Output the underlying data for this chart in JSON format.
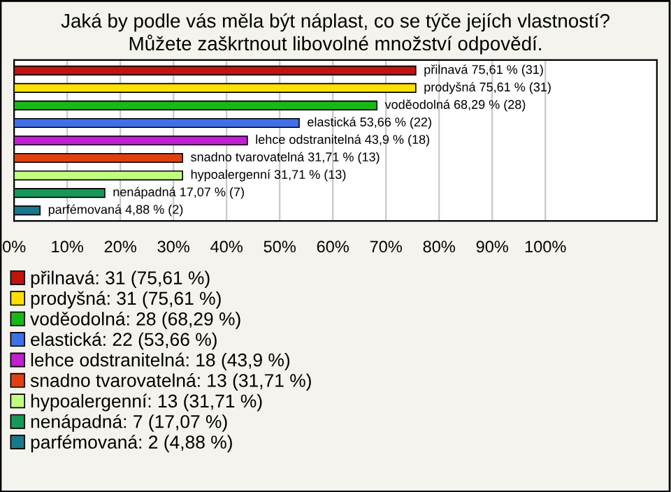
{
  "chart_data": {
    "type": "bar",
    "orientation": "horizontal",
    "title": "Jaká by podle vás měla být náplast, co se týče jejích vlastností?\nMůžete zaškrtnout libovolné množství odpovědí.",
    "categories": [
      null,
      null,
      null,
      null,
      null,
      null,
      null,
      null,
      null
    ],
    "series": [
      {
        "name": "přilnavá: 31 (75,61 %)",
        "color": "#c0140c",
        "values": [
          75.61,
          null,
          null,
          null,
          null,
          null,
          null,
          null,
          null
        ],
        "value_labels": [
          "přilnavá 75,61 % (31)",
          null,
          null,
          null,
          null,
          null,
          null,
          null,
          null
        ]
      },
      {
        "name": "prodyšná: 31 (75,61 %)",
        "color": "#ffe000",
        "values": [
          null,
          75.61,
          null,
          null,
          null,
          null,
          null,
          null,
          null
        ],
        "value_labels": [
          null,
          "prodyšná 75,61 % (31)",
          null,
          null,
          null,
          null,
          null,
          null,
          null
        ]
      },
      {
        "name": "voděodolná: 28 (68,29 %)",
        "color": "#18b818",
        "values": [
          null,
          null,
          68.29,
          null,
          null,
          null,
          null,
          null,
          null
        ],
        "value_labels": [
          null,
          null,
          "voděodolná 68,29 % (28)",
          null,
          null,
          null,
          null,
          null,
          null
        ]
      },
      {
        "name": "elastická: 22 (53,66 %)",
        "color": "#4070e8",
        "values": [
          null,
          null,
          null,
          53.66,
          null,
          null,
          null,
          null,
          null
        ],
        "value_labels": [
          null,
          null,
          null,
          "elastická 53,66 % (22)",
          null,
          null,
          null,
          null,
          null
        ]
      },
      {
        "name": "lehce odstranitelná: 18 (43,9 %)",
        "color": "#c020d0",
        "values": [
          null,
          null,
          null,
          null,
          43.9,
          null,
          null,
          null,
          null
        ],
        "value_labels": [
          null,
          null,
          null,
          null,
          "lehce odstranitelná 43,9 % (18)",
          null,
          null,
          null,
          null
        ]
      },
      {
        "name": "snadno tvarovatelná: 13 (31,71 %)",
        "color": "#e04010",
        "values": [
          null,
          null,
          null,
          null,
          null,
          31.71,
          null,
          null,
          null
        ],
        "value_labels": [
          null,
          null,
          null,
          null,
          null,
          "snadno tvarovatelná 31,71 % (13)",
          null,
          null,
          null
        ]
      },
      {
        "name": "hypoalergenní: 13 (31,71 %)",
        "color": "#c0ff80",
        "values": [
          null,
          null,
          null,
          null,
          null,
          null,
          31.71,
          null,
          null
        ],
        "value_labels": [
          null,
          null,
          null,
          null,
          null,
          null,
          "hypoalergenní 31,71 % (13)",
          null,
          null
        ]
      },
      {
        "name": "nenápadná: 7 (17,07 %)",
        "color": "#189858",
        "values": [
          null,
          null,
          null,
          null,
          null,
          null,
          null,
          17.07,
          null
        ],
        "value_labels": [
          null,
          null,
          null,
          null,
          null,
          null,
          null,
          "nenápadná 17,07 % (7)",
          null
        ]
      },
      {
        "name": "parfémovaná: 2 (4,88 %)",
        "color": "#18788c",
        "values": [
          null,
          null,
          null,
          null,
          null,
          null,
          null,
          null,
          4.88
        ],
        "value_labels": [
          null,
          null,
          null,
          null,
          null,
          null,
          null,
          null,
          "parfémovaná 4,88 % (2)"
        ]
      }
    ],
    "xlim": [
      0,
      121
    ],
    "xticks": [
      {
        "value": 0,
        "label": "0%"
      },
      {
        "value": 10,
        "label": "10%"
      },
      {
        "value": 20,
        "label": "20%"
      },
      {
        "value": 30,
        "label": "30%"
      },
      {
        "value": 40,
        "label": "40%"
      },
      {
        "value": 50,
        "label": "50%"
      },
      {
        "value": 60,
        "label": "60%"
      },
      {
        "value": 70,
        "label": "70%"
      },
      {
        "value": 80,
        "label": "80%"
      },
      {
        "value": 90,
        "label": "90%"
      },
      {
        "value": 100,
        "label": "100%"
      }
    ],
    "grid": "x",
    "legend": "bottom",
    "tick_labels": "x"
  }
}
